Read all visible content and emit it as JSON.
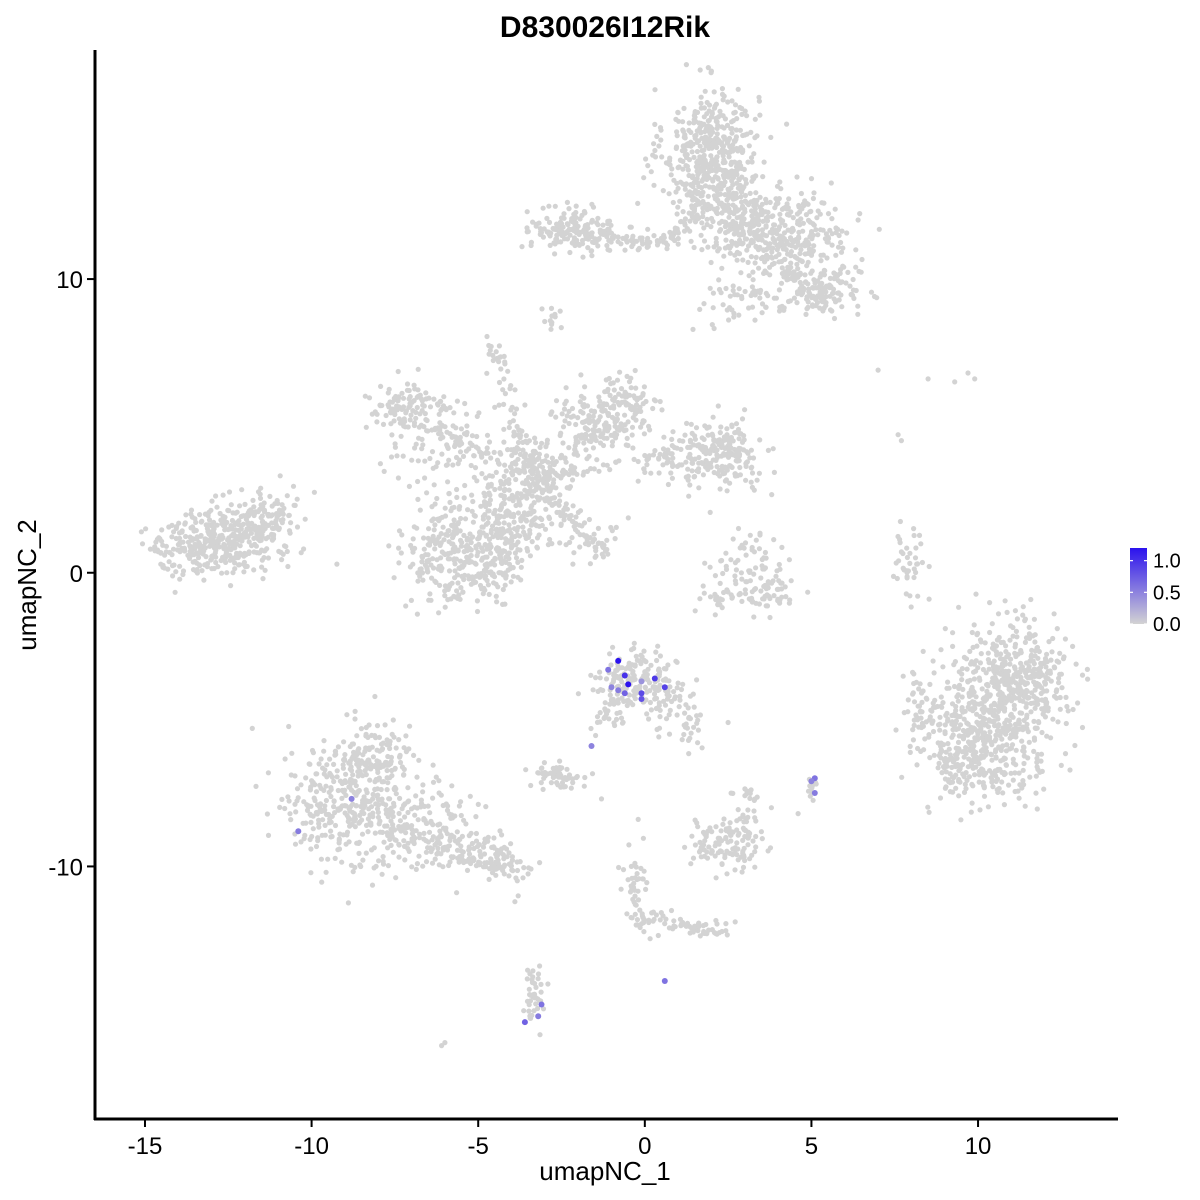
{
  "chart_data": {
    "type": "scatter",
    "title": "D830026I12Rik",
    "xlabel": "umapNC_1",
    "ylabel": "umapNC_2",
    "xlim": [
      -16.5,
      14.2
    ],
    "ylim": [
      -18.6,
      17.8
    ],
    "x_ticks": [
      -15,
      -10,
      -5,
      0,
      5,
      10
    ],
    "y_ticks": [
      -10,
      0,
      10
    ],
    "x_tick_labels": [
      "-15",
      "-10",
      "-5",
      "0",
      "5",
      "10"
    ],
    "y_tick_labels": [
      "-10",
      "0",
      "10"
    ],
    "grid": false,
    "legend": {
      "placement": "right",
      "type": "colorbar",
      "min": 0.0,
      "max": 1.2,
      "low_color": "#d3d3d3",
      "high_color": "#2b12ee",
      "ticks": [
        0.0,
        0.5,
        1.0
      ],
      "tick_labels": [
        "0.0",
        "0.5",
        "1.0"
      ]
    },
    "background_point_color": "#d3d3d3",
    "clusters": [
      {
        "cx": 2.0,
        "cy": 14.5,
        "sx": 0.7,
        "sy": 1.0,
        "n": 380
      },
      {
        "cx": 2.4,
        "cy": 12.6,
        "sx": 0.9,
        "sy": 0.8,
        "n": 220
      },
      {
        "cx": 4.2,
        "cy": 11.5,
        "sx": 1.0,
        "sy": 0.7,
        "n": 320
      },
      {
        "cx": 5.5,
        "cy": 9.6,
        "sx": 0.5,
        "sy": 0.35,
        "n": 90
      },
      {
        "cx": 3.2,
        "cy": 9.2,
        "sx": 0.8,
        "sy": 0.4,
        "n": 60
      },
      {
        "cx": -2.2,
        "cy": 11.7,
        "sx": 0.6,
        "sy": 0.35,
        "n": 150
      },
      {
        "cx": -0.3,
        "cy": 11.3,
        "sx": 0.8,
        "sy": 0.2,
        "n": 50
      },
      {
        "cx": -2.8,
        "cy": 8.5,
        "sx": 0.2,
        "sy": 0.3,
        "n": 10
      },
      {
        "cx": -4.4,
        "cy": 7.4,
        "sx": 0.2,
        "sy": 0.3,
        "n": 20
      },
      {
        "cx": -7.2,
        "cy": 5.6,
        "sx": 0.6,
        "sy": 0.4,
        "n": 90
      },
      {
        "cx": -6.0,
        "cy": 4.7,
        "sx": 1.0,
        "sy": 0.7,
        "n": 100
      },
      {
        "cx": -3.5,
        "cy": 3.2,
        "sx": 0.8,
        "sy": 0.8,
        "n": 200
      },
      {
        "cx": -1.5,
        "cy": 5.2,
        "sx": 0.7,
        "sy": 0.6,
        "n": 120
      },
      {
        "cx": -0.5,
        "cy": 5.6,
        "sx": 0.5,
        "sy": 0.6,
        "n": 80
      },
      {
        "cx": 1.5,
        "cy": 4.0,
        "sx": 0.9,
        "sy": 0.5,
        "n": 100
      },
      {
        "cx": 2.3,
        "cy": 4.0,
        "sx": 0.7,
        "sy": 0.6,
        "n": 140
      },
      {
        "cx": -4.2,
        "cy": 1.5,
        "sx": 0.6,
        "sy": 0.8,
        "n": 160
      },
      {
        "cx": -5.9,
        "cy": 0.8,
        "sx": 0.7,
        "sy": 0.9,
        "n": 220
      },
      {
        "cx": -4.6,
        "cy": 0.2,
        "sx": 0.6,
        "sy": 0.7,
        "n": 100
      },
      {
        "cx": -2.0,
        "cy": 1.2,
        "sx": 0.8,
        "sy": 0.4,
        "n": 30
      },
      {
        "cx": -12.6,
        "cy": 1.1,
        "sx": 0.9,
        "sy": 0.6,
        "n": 260
      },
      {
        "cx": -11.7,
        "cy": 1.8,
        "sx": 0.6,
        "sy": 0.5,
        "n": 120
      },
      {
        "cx": -13.8,
        "cy": 0.8,
        "sx": 0.6,
        "sy": 0.5,
        "n": 90
      },
      {
        "cx": 3.0,
        "cy": -0.3,
        "sx": 0.8,
        "sy": 0.5,
        "n": 90
      },
      {
        "cx": 3.4,
        "cy": 0.9,
        "sx": 0.3,
        "sy": 0.3,
        "n": 20
      },
      {
        "cx": 8.0,
        "cy": 0.4,
        "sx": 0.25,
        "sy": 0.6,
        "n": 40
      },
      {
        "cx": 10.6,
        "cy": -4.6,
        "sx": 0.9,
        "sy": 1.4,
        "n": 500
      },
      {
        "cx": 9.6,
        "cy": -6.0,
        "sx": 0.7,
        "sy": 0.8,
        "n": 200
      },
      {
        "cx": 11.5,
        "cy": -3.6,
        "sx": 0.7,
        "sy": 0.8,
        "n": 200
      },
      {
        "cx": 8.2,
        "cy": -4.6,
        "sx": 0.3,
        "sy": 0.6,
        "n": 40
      },
      {
        "cx": -0.3,
        "cy": -3.7,
        "sx": 0.6,
        "sy": 0.5,
        "n": 160
      },
      {
        "cx": 0.8,
        "cy": -4.4,
        "sx": 0.5,
        "sy": 0.5,
        "n": 40
      },
      {
        "cx": 1.3,
        "cy": -5.2,
        "sx": 0.2,
        "sy": 0.4,
        "n": 20
      },
      {
        "cx": -1.2,
        "cy": -4.8,
        "sx": 0.3,
        "sy": 0.3,
        "n": 20
      },
      {
        "cx": -2.5,
        "cy": -6.9,
        "sx": 0.4,
        "sy": 0.2,
        "n": 60
      },
      {
        "cx": -8.8,
        "cy": -8.0,
        "sx": 1.0,
        "sy": 1.1,
        "n": 350
      },
      {
        "cx": -8.2,
        "cy": -6.3,
        "sx": 0.6,
        "sy": 0.7,
        "n": 120
      },
      {
        "cx": -6.6,
        "cy": -8.6,
        "sx": 0.7,
        "sy": 0.7,
        "n": 120
      },
      {
        "cx": -5.2,
        "cy": -9.5,
        "sx": 0.6,
        "sy": 0.4,
        "n": 70
      },
      {
        "cx": -4.1,
        "cy": -10.0,
        "sx": 0.4,
        "sy": 0.3,
        "n": 40
      },
      {
        "cx": 2.3,
        "cy": -9.2,
        "sx": 0.5,
        "sy": 0.4,
        "n": 90
      },
      {
        "cx": 3.0,
        "cy": -8.6,
        "sx": 0.3,
        "sy": 0.6,
        "n": 40
      },
      {
        "cx": 5.0,
        "cy": -7.4,
        "sx": 0.15,
        "sy": 0.2,
        "n": 10
      },
      {
        "cx": -0.3,
        "cy": -10.9,
        "sx": 0.2,
        "sy": 0.6,
        "n": 40
      },
      {
        "cx": 0.0,
        "cy": -11.8,
        "sx": 0.2,
        "sy": 0.3,
        "n": 15
      },
      {
        "cx": 1.5,
        "cy": -12.1,
        "sx": 0.5,
        "sy": 0.2,
        "n": 30
      },
      {
        "cx": -3.3,
        "cy": -14.6,
        "sx": 0.2,
        "sy": 0.6,
        "n": 25
      }
    ],
    "paths": [
      {
        "x0": -1.5,
        "y0": 11.6,
        "x1": 0.7,
        "y1": 11.3,
        "n": 25
      },
      {
        "x0": 0.8,
        "y0": 11.3,
        "x1": 1.8,
        "y1": 13.0,
        "n": 25
      },
      {
        "x0": 2.5,
        "y0": 12.0,
        "x1": 4.5,
        "y1": 10.0,
        "n": 40
      },
      {
        "x0": 4.3,
        "y0": 10.3,
        "x1": 5.3,
        "y1": 9.0,
        "n": 40
      },
      {
        "x0": -4.2,
        "y0": 6.8,
        "x1": -3.6,
        "y1": 3.5,
        "n": 30
      },
      {
        "x0": -3.3,
        "y0": 3.0,
        "x1": -1.3,
        "y1": 0.8,
        "n": 60
      },
      {
        "x0": -1.5,
        "y0": 0.8,
        "x1": -1.1,
        "y1": 0.6,
        "n": 10
      },
      {
        "x0": -3.3,
        "y0": 3.2,
        "x1": -6.5,
        "y1": 5.0,
        "n": 40
      },
      {
        "x0": -3.3,
        "y0": 3.2,
        "x1": -1.0,
        "y1": 5.0,
        "n": 40
      },
      {
        "x0": -3.3,
        "y0": 3.2,
        "x1": 1.0,
        "y1": 4.0,
        "n": 40
      },
      {
        "x0": 2.2,
        "y0": -0.8,
        "x1": 4.4,
        "y1": -0.9,
        "n": 25
      },
      {
        "x0": -0.6,
        "y0": -3.5,
        "x1": -1.7,
        "y1": -6.0,
        "n": 15
      },
      {
        "x0": -7.2,
        "y0": -8.9,
        "x1": -4.1,
        "y1": -10.2,
        "n": 40
      },
      {
        "x0": 0.2,
        "y0": -11.6,
        "x1": 2.4,
        "y1": -12.4,
        "n": 25
      },
      {
        "x0": -3.3,
        "y0": -13.5,
        "x1": -3.5,
        "y1": -15.2,
        "n": 15
      },
      {
        "x0": 2.6,
        "y0": -7.5,
        "x1": 3.5,
        "y1": -7.8,
        "n": 10
      }
    ],
    "singletons": [
      {
        "x": -2.8,
        "y": 9.0
      },
      {
        "x": -2.7,
        "y": 8.8
      },
      {
        "x": 7.0,
        "y": 6.9
      },
      {
        "x": 8.5,
        "y": 6.6
      },
      {
        "x": 9.3,
        "y": 6.5
      },
      {
        "x": 9.7,
        "y": 6.8
      },
      {
        "x": 9.9,
        "y": 6.6
      },
      {
        "x": 7.6,
        "y": 4.7
      },
      {
        "x": 7.7,
        "y": 4.5
      },
      {
        "x": 2.5,
        "y": -5.1
      },
      {
        "x": -0.2,
        "y": -8.4
      },
      {
        "x": -1.3,
        "y": -7.7
      },
      {
        "x": -3.8,
        "y": -11.0
      },
      {
        "x": -3.9,
        "y": -11.2
      },
      {
        "x": -6.0,
        "y": -16.0
      },
      {
        "x": -6.1,
        "y": -16.1
      },
      {
        "x": 0.6,
        "y": -13.9
      },
      {
        "x": 3.8,
        "y": -8.0
      },
      {
        "x": 4.6,
        "y": -8.2
      },
      {
        "x": -3.0,
        "y": -6.8
      },
      {
        "x": 0.8,
        "y": -11.5
      }
    ],
    "expressing_points": [
      {
        "x": -0.8,
        "y": -3.0,
        "value": 1.2
      },
      {
        "x": -0.6,
        "y": -3.5,
        "value": 1.0
      },
      {
        "x": -0.5,
        "y": -3.8,
        "value": 1.25
      },
      {
        "x": 0.3,
        "y": -3.6,
        "value": 0.95
      },
      {
        "x": 0.6,
        "y": -3.9,
        "value": 0.9
      },
      {
        "x": -1.1,
        "y": -3.3,
        "value": 0.6
      },
      {
        "x": -1.0,
        "y": -3.9,
        "value": 0.5
      },
      {
        "x": -0.8,
        "y": -4.0,
        "value": 0.55
      },
      {
        "x": -0.6,
        "y": -4.1,
        "value": 0.7
      },
      {
        "x": -0.1,
        "y": -3.7,
        "value": 0.4
      },
      {
        "x": -0.1,
        "y": -4.1,
        "value": 0.85
      },
      {
        "x": -0.1,
        "y": -4.3,
        "value": 0.8
      },
      {
        "x": -1.6,
        "y": -5.9,
        "value": 0.5
      },
      {
        "x": -8.8,
        "y": -7.7,
        "value": 0.5
      },
      {
        "x": -10.4,
        "y": -8.8,
        "value": 0.55
      },
      {
        "x": 5.1,
        "y": -7.0,
        "value": 0.6
      },
      {
        "x": 5.1,
        "y": -7.5,
        "value": 0.55
      },
      {
        "x": 5.0,
        "y": -7.1,
        "value": 0.5
      },
      {
        "x": 0.6,
        "y": -13.9,
        "value": 0.6
      },
      {
        "x": -3.1,
        "y": -14.7,
        "value": 0.6
      },
      {
        "x": -3.2,
        "y": -15.1,
        "value": 0.55
      },
      {
        "x": -3.6,
        "y": -15.3,
        "value": 0.7
      }
    ]
  }
}
